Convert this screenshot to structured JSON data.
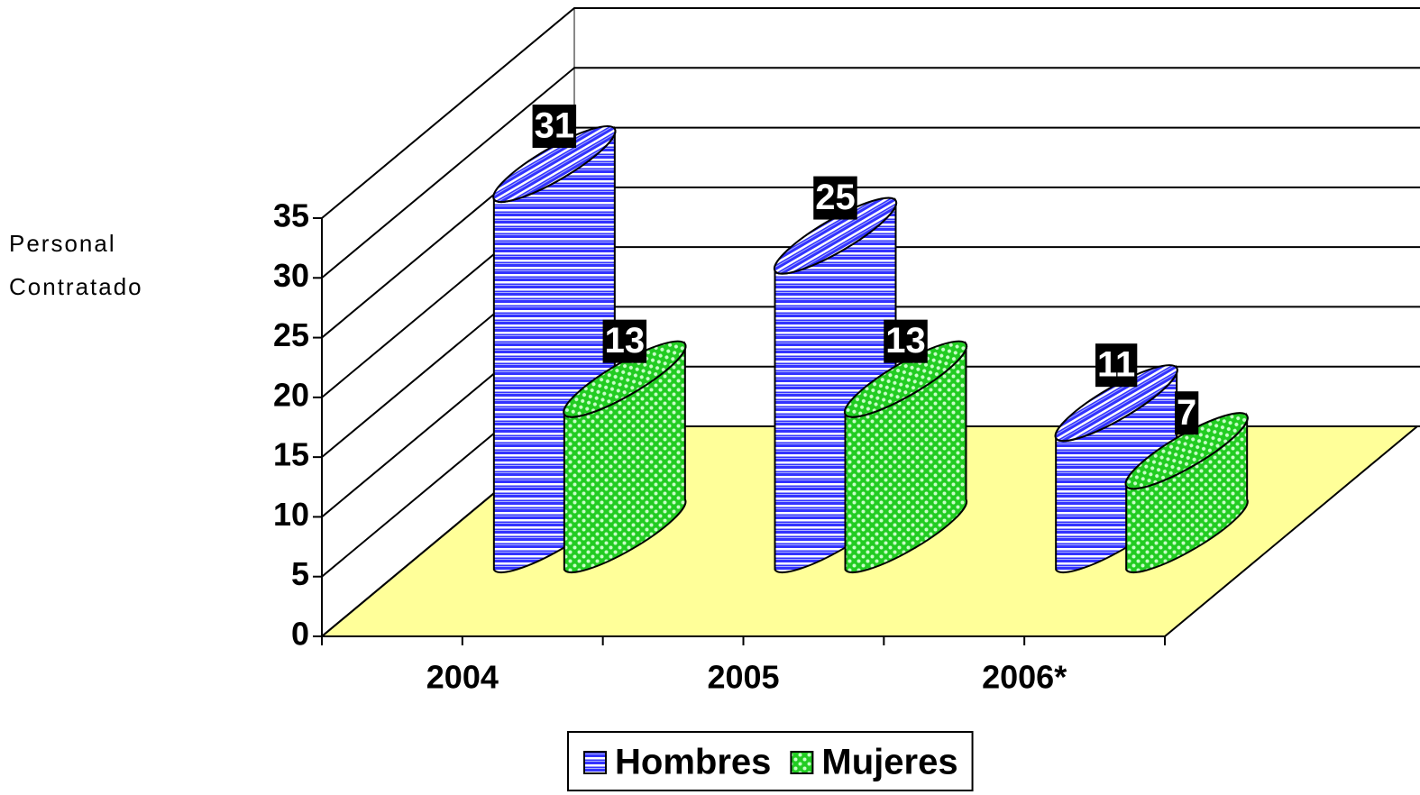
{
  "chart_data": {
    "type": "bar3d-cylinder",
    "y_axis_label": "Personal Contratado",
    "categories": [
      "2004",
      "2005",
      "2006*"
    ],
    "series": [
      {
        "name": "Hombres",
        "color": "#3333ff",
        "values": [
          31,
          25,
          11
        ]
      },
      {
        "name": "Mujeres",
        "color": "#33cc33",
        "values": [
          13,
          13,
          7
        ]
      }
    ],
    "ylim": [
      0,
      35
    ],
    "yticks": [
      0,
      5,
      10,
      15,
      20,
      25,
      30,
      35
    ],
    "grid": true,
    "legend": "bottom"
  }
}
